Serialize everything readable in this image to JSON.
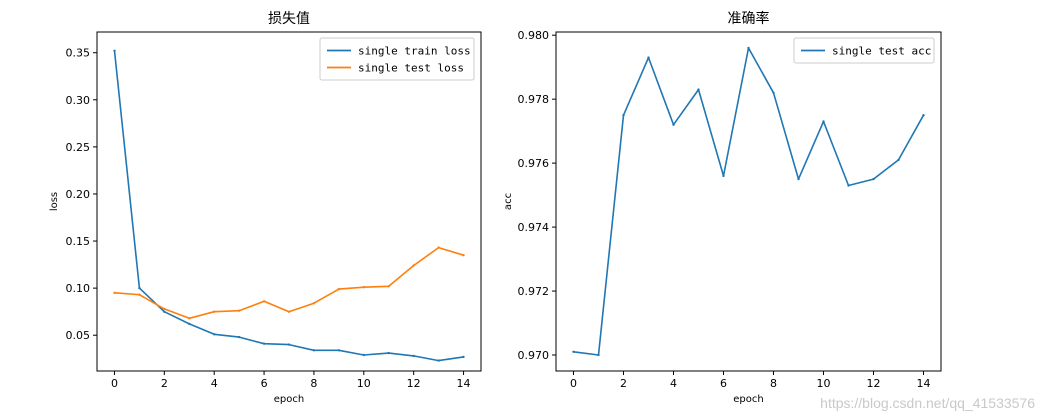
{
  "chart_data": [
    {
      "type": "line",
      "title": "损失值",
      "xlabel": "epoch",
      "ylabel": "loss",
      "x": [
        0,
        1,
        2,
        3,
        4,
        5,
        6,
        7,
        8,
        9,
        10,
        11,
        12,
        13,
        14
      ],
      "xlim": [
        -0.7,
        14.7
      ],
      "ylim": [
        0.012,
        0.372
      ],
      "xticks": [
        0,
        2,
        4,
        6,
        8,
        10,
        12,
        14
      ],
      "xtick_labels": [
        "0",
        "2",
        "4",
        "6",
        "8",
        "10",
        "12",
        "14"
      ],
      "yticks": [
        0.05,
        0.1,
        0.15,
        0.2,
        0.25,
        0.3,
        0.35
      ],
      "ytick_labels": [
        "0.05",
        "0.10",
        "0.15",
        "0.20",
        "0.25",
        "0.30",
        "0.35"
      ],
      "grid": false,
      "legend": "top-right",
      "series": [
        {
          "name": "single train loss",
          "color": "#1f77b4",
          "values": [
            0.352,
            0.1,
            0.075,
            0.062,
            0.051,
            0.048,
            0.041,
            0.04,
            0.034,
            0.034,
            0.029,
            0.031,
            0.028,
            0.023,
            0.027
          ]
        },
        {
          "name": "single test loss",
          "color": "#ff7f0e",
          "values": [
            0.095,
            0.093,
            0.078,
            0.068,
            0.075,
            0.076,
            0.086,
            0.075,
            0.084,
            0.099,
            0.101,
            0.102,
            0.124,
            0.143,
            0.135
          ]
        }
      ]
    },
    {
      "type": "line",
      "title": "准确率",
      "xlabel": "epoch",
      "ylabel": "acc",
      "x": [
        0,
        1,
        2,
        3,
        4,
        5,
        6,
        7,
        8,
        9,
        10,
        11,
        12,
        13,
        14
      ],
      "xlim": [
        -0.7,
        14.7
      ],
      "ylim": [
        0.9695,
        0.9801
      ],
      "xticks": [
        0,
        2,
        4,
        6,
        8,
        10,
        12,
        14
      ],
      "xtick_labels": [
        "0",
        "2",
        "4",
        "6",
        "8",
        "10",
        "12",
        "14"
      ],
      "yticks": [
        0.97,
        0.972,
        0.974,
        0.976,
        0.978,
        0.98
      ],
      "ytick_labels": [
        "0.970",
        "0.972",
        "0.974",
        "0.976",
        "0.978",
        "0.980"
      ],
      "grid": false,
      "legend": "top-right",
      "series": [
        {
          "name": "single test acc",
          "color": "#1f77b4",
          "values": [
            0.9701,
            0.97,
            0.9775,
            0.9793,
            0.9772,
            0.9783,
            0.9756,
            0.9796,
            0.9782,
            0.9755,
            0.9773,
            0.9753,
            0.9755,
            0.9761,
            0.9775
          ]
        }
      ]
    }
  ],
  "watermark": "https://blog.csdn.net/qq_41533576"
}
